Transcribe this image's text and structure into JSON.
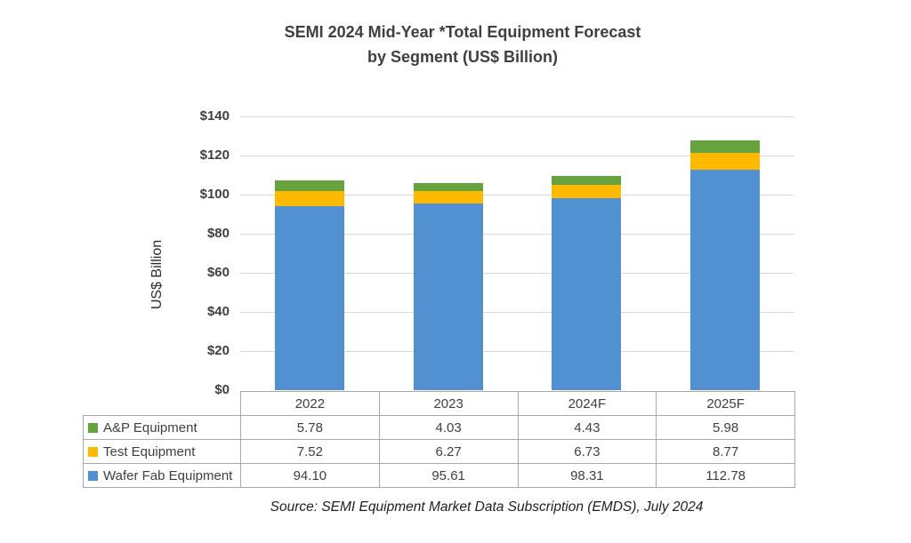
{
  "title": {
    "line1": "SEMI 2024 Mid-Year *Total Equipment Forecast",
    "line2": "by Segment (US$ Billion)"
  },
  "source": "Source: SEMI Equipment Market Data Subscription (EMDS), July 2024",
  "chart_data": {
    "type": "bar",
    "stacked": true,
    "title": "SEMI 2024 Mid-Year *Total Equipment Forecast by Segment (US$ Billion)",
    "categories": [
      "2022",
      "2023",
      "2024F",
      "2025F"
    ],
    "series": [
      {
        "name": "Wafer Fab Equipment",
        "color": "#5191d1",
        "values": [
          94.1,
          95.61,
          98.31,
          112.78
        ]
      },
      {
        "name": "Test Equipment",
        "color": "#ffba00",
        "values": [
          7.52,
          6.27,
          6.73,
          8.77
        ]
      },
      {
        "name": "A&P Equipment",
        "color": "#66a23d",
        "values": [
          5.78,
          4.03,
          4.43,
          5.98
        ]
      }
    ],
    "stack_order": "bottom-to-top",
    "ylabel": "US$ Billion",
    "xlabel": "",
    "ylim": [
      0,
      140
    ],
    "ytick_step": 20,
    "yticks": [
      "$0",
      "$20",
      "$40",
      "$60",
      "$80",
      "$100",
      "$120",
      "$140"
    ],
    "grid": true,
    "legend_position": "table-left-column"
  },
  "table": {
    "header": [
      "2022",
      "2023",
      "2024F",
      "2025F"
    ],
    "rows": [
      {
        "label": "A&P Equipment",
        "swatch": "#66a23d",
        "values": [
          "5.78",
          "4.03",
          "4.43",
          "5.98"
        ]
      },
      {
        "label": "Test Equipment",
        "swatch": "#ffba00",
        "values": [
          "7.52",
          "6.27",
          "6.73",
          "8.77"
        ]
      },
      {
        "label": "Wafer Fab Equipment",
        "swatch": "#5191d1",
        "values": [
          "94.10",
          "95.61",
          "98.31",
          "112.78"
        ]
      }
    ]
  }
}
